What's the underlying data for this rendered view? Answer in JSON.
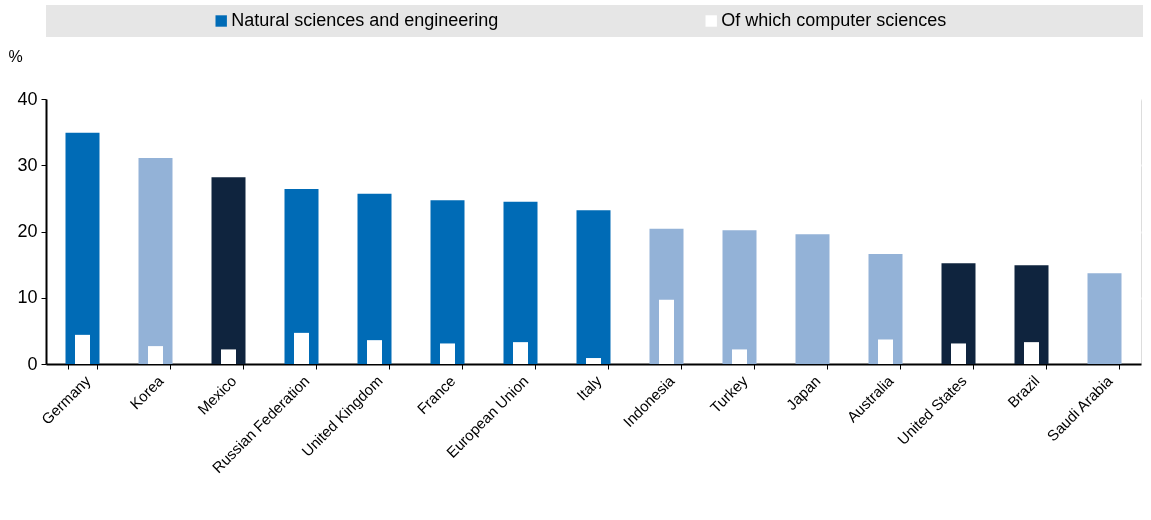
{
  "chart_data": {
    "type": "bar",
    "ylabel": "%",
    "categories": [
      "Germany",
      "Korea",
      "Mexico",
      "Russian Federation",
      "United Kingdom",
      "France",
      "European Union",
      "Italy",
      "Indonesia",
      "Turkey",
      "Japan",
      "Australia",
      "United States",
      "Brazil",
      "Saudi Arabia"
    ],
    "series": [
      {
        "name": "Natural sciences and engineering",
        "color": "#006bb6",
        "colors": [
          "#006bb6",
          "#93b2d7",
          "#0f243e",
          "#006bb6",
          "#006bb6",
          "#006bb6",
          "#006bb6",
          "#006bb6",
          "#93b2d7",
          "#93b2d7",
          "#93b2d7",
          "#93b2d7",
          "#0f243e",
          "#0f243e",
          "#93b2d7"
        ],
        "values": [
          34.9,
          31.1,
          28.2,
          26.4,
          25.7,
          24.7,
          24.5,
          23.2,
          20.4,
          20.2,
          19.6,
          16.6,
          15.2,
          14.9,
          13.7
        ]
      },
      {
        "name": "Of which computer sciences",
        "color": "#ffffff",
        "values": [
          4.4,
          2.7,
          2.2,
          4.7,
          3.6,
          3.1,
          3.3,
          0.9,
          9.7,
          2.2,
          null,
          3.7,
          3.1,
          3.3,
          null
        ]
      }
    ],
    "ylim": [
      0,
      40
    ],
    "yticks": [
      0,
      10,
      20,
      30,
      40
    ],
    "grid": true,
    "legend": "top"
  }
}
